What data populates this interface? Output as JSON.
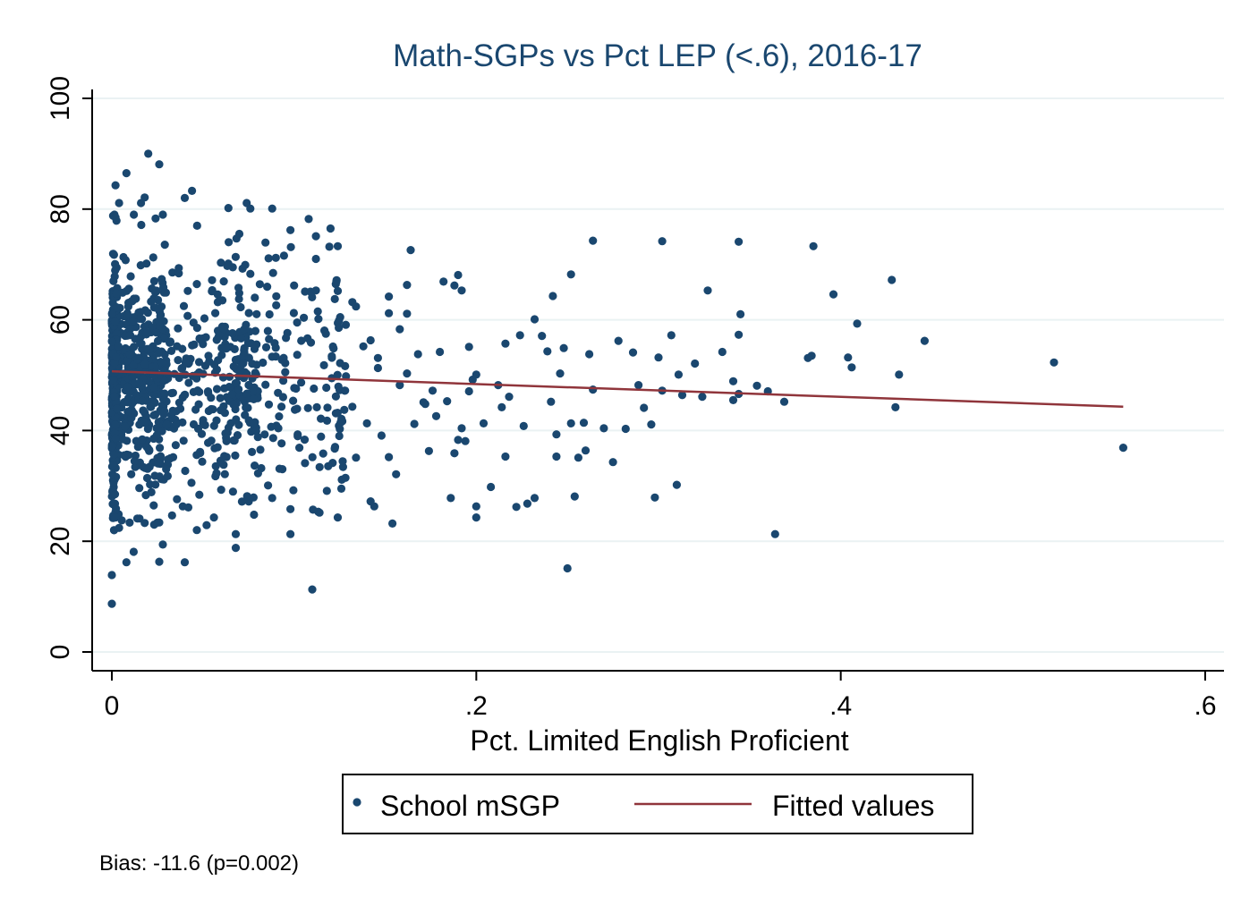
{
  "chart_data": {
    "type": "scatter",
    "title": "Math-SGPs vs Pct LEP (<.6), 2016-17",
    "xlabel": "Pct. Limited English Proficient",
    "ylabel": "",
    "xlim": [
      0,
      0.6
    ],
    "ylim": [
      0,
      100
    ],
    "x_ticks": [
      0,
      0.2,
      0.4,
      0.6
    ],
    "x_tick_labels": [
      "0",
      ".2",
      ".4",
      ".6"
    ],
    "y_ticks": [
      0,
      20,
      40,
      60,
      80,
      100
    ],
    "y_tick_labels": [
      "0",
      "20",
      "40",
      "60",
      "80",
      "100"
    ],
    "grid": "horizontal",
    "legend_position": "bottom",
    "colors": {
      "points": "#1a476f",
      "fit": "#90353b",
      "title": "#1a476f"
    },
    "series": [
      {
        "name": "School mSGP",
        "kind": "scatter",
        "points": [
          [
            0,
            8.7
          ],
          [
            0,
            13.9
          ],
          [
            0.002,
            84.3
          ],
          [
            0.002,
            78.5
          ],
          [
            0.004,
            81.1
          ],
          [
            0.008,
            86.5
          ],
          [
            0.02,
            90
          ],
          [
            0.026,
            88.1
          ],
          [
            0.016,
            81.1
          ],
          [
            0.018,
            82.1
          ],
          [
            0.04,
            82
          ],
          [
            0.044,
            83.3
          ],
          [
            0.024,
            78.3
          ],
          [
            0.064,
            80.2
          ],
          [
            0.074,
            81.1
          ],
          [
            0.076,
            80.1
          ],
          [
            0.088,
            80.1
          ],
          [
            0.076,
            68.3
          ],
          [
            0.086,
            71.1
          ],
          [
            0.09,
            71.2
          ],
          [
            0.108,
            78.2
          ],
          [
            0.098,
            76.2
          ],
          [
            0.112,
            75.1
          ],
          [
            0.112,
            71
          ],
          [
            0.12,
            76.5
          ],
          [
            0.124,
            73.3
          ],
          [
            0.164,
            72.6
          ],
          [
            0.182,
            66.9
          ],
          [
            0.188,
            66.2
          ],
          [
            0.19,
            68.1
          ],
          [
            0.192,
            65.3
          ],
          [
            0.162,
            66.3
          ],
          [
            0.152,
            64.2
          ],
          [
            0.124,
            65.2
          ],
          [
            0.112,
            65.3
          ],
          [
            0.106,
            65.1
          ],
          [
            0.1,
            66.2
          ],
          [
            0.134,
            62.4
          ],
          [
            0.242,
            64.3
          ],
          [
            0.252,
            68.2
          ],
          [
            0.264,
            74.3
          ],
          [
            0.302,
            74.2
          ],
          [
            0.344,
            74.1
          ],
          [
            0.385,
            73.3
          ],
          [
            0.396,
            64.6
          ],
          [
            0.428,
            67.2
          ],
          [
            0.327,
            65.3
          ],
          [
            0.345,
            61
          ],
          [
            0.344,
            57.3
          ],
          [
            0.409,
            59.3
          ],
          [
            0.446,
            56.2
          ],
          [
            0.382,
            53.1
          ],
          [
            0.384,
            53.5
          ],
          [
            0.404,
            53.2
          ],
          [
            0.406,
            51.4
          ],
          [
            0.432,
            50.1
          ],
          [
            0.43,
            44.2
          ],
          [
            0.517,
            52.3
          ],
          [
            0.555,
            36.9
          ],
          [
            0.364,
            21.3
          ],
          [
            0.302,
            47.2
          ],
          [
            0.31,
            30.2
          ],
          [
            0.298,
            27.9
          ],
          [
            0.3,
            53.2
          ],
          [
            0.307,
            57.2
          ],
          [
            0.311,
            50.1
          ],
          [
            0.313,
            46.4
          ],
          [
            0.32,
            52.1
          ],
          [
            0.324,
            46.1
          ],
          [
            0.335,
            54.2
          ],
          [
            0.341,
            48.9
          ],
          [
            0.341,
            45.5
          ],
          [
            0.344,
            46.6
          ],
          [
            0.354,
            48.1
          ],
          [
            0.36,
            47.1
          ],
          [
            0.369,
            45.2
          ],
          [
            0.25,
            15.1
          ],
          [
            0.254,
            28.1
          ],
          [
            0.256,
            35.1
          ],
          [
            0.259,
            41.4
          ],
          [
            0.26,
            36.4
          ],
          [
            0.264,
            47.4
          ],
          [
            0.262,
            53.8
          ],
          [
            0.27,
            40.4
          ],
          [
            0.275,
            34.3
          ],
          [
            0.278,
            56.2
          ],
          [
            0.282,
            40.3
          ],
          [
            0.286,
            54.1
          ],
          [
            0.289,
            48.2
          ],
          [
            0.292,
            44.1
          ],
          [
            0.296,
            41.1
          ],
          [
            0.232,
            60.1
          ],
          [
            0.236,
            57.1
          ],
          [
            0.239,
            54.3
          ],
          [
            0.241,
            45.2
          ],
          [
            0.244,
            39.3
          ],
          [
            0.246,
            50.3
          ],
          [
            0.248,
            54.9
          ],
          [
            0.244,
            35.3
          ],
          [
            0.252,
            41.3
          ],
          [
            0.222,
            26.2
          ],
          [
            0.226,
            40.8
          ],
          [
            0.228,
            26.8
          ],
          [
            0.232,
            27.8
          ],
          [
            0.214,
            44.2
          ],
          [
            0.216,
            35.3
          ],
          [
            0.218,
            46.1
          ],
          [
            0.212,
            48.2
          ],
          [
            0.208,
            29.8
          ],
          [
            0.204,
            41.3
          ],
          [
            0.2,
            26.3
          ],
          [
            0.2,
            24.3
          ],
          [
            0.198,
            49.2
          ],
          [
            0.196,
            55.1
          ],
          [
            0.194,
            38.1
          ],
          [
            0.19,
            38.3
          ],
          [
            0.188,
            35.9
          ],
          [
            0.186,
            27.8
          ],
          [
            0.184,
            45.3
          ],
          [
            0.18,
            54.2
          ],
          [
            0.176,
            47.2
          ],
          [
            0.174,
            36.3
          ],
          [
            0.171,
            45.1
          ],
          [
            0.168,
            53.8
          ],
          [
            0.166,
            41.2
          ],
          [
            0.162,
            50.3
          ],
          [
            0.158,
            48.2
          ],
          [
            0.156,
            32.1
          ],
          [
            0.154,
            23.2
          ],
          [
            0.152,
            35.2
          ],
          [
            0.148,
            39.1
          ],
          [
            0.146,
            51.3
          ],
          [
            0.144,
            26.3
          ],
          [
            0.142,
            27.2
          ],
          [
            0.14,
            41.3
          ],
          [
            0.138,
            55.2
          ],
          [
            0.134,
            35.1
          ],
          [
            0.132,
            44.3
          ],
          [
            0.128,
            47.2
          ],
          [
            0.126,
            42.1
          ],
          [
            0.124,
            24.3
          ],
          [
            0.118,
            29.1
          ],
          [
            0.114,
            33.4
          ],
          [
            0.11,
            11.3
          ],
          [
            0.106,
            34.1
          ],
          [
            0.102,
            39.3
          ],
          [
            0.098,
            21.3
          ],
          [
            0.098,
            25.8
          ],
          [
            0.092,
            33.1
          ],
          [
            0.088,
            27.8
          ],
          [
            0.082,
            33.2
          ],
          [
            0.078,
            24.8
          ],
          [
            0.068,
            18.8
          ],
          [
            0.068,
            21.3
          ],
          [
            0.056,
            24.3
          ],
          [
            0.04,
            16.2
          ],
          [
            0.026,
            16.3
          ],
          [
            0.028,
            19.4
          ],
          [
            0.018,
            23.3
          ],
          [
            0.012,
            18.1
          ],
          [
            0.008,
            16.2
          ],
          [
            0.004,
            22.4
          ],
          [
            0.002,
            24.3
          ],
          [
            0.014,
            24.1
          ],
          [
            0.026,
            23.4
          ],
          [
            0.042,
            26.1
          ],
          [
            0.048,
            28.4
          ],
          [
            0.052,
            22.9
          ],
          [
            0.06,
            29.3
          ],
          [
            0.132,
            63.2
          ],
          [
            0.152,
            61.2
          ],
          [
            0.158,
            58.3
          ],
          [
            0.162,
            61.1
          ],
          [
            0.142,
            56.3
          ],
          [
            0.146,
            53.1
          ],
          [
            0.224,
            57.2
          ],
          [
            0.216,
            55.7
          ],
          [
            0.2,
            50.1
          ],
          [
            0.196,
            47.1
          ],
          [
            0.192,
            40.4
          ],
          [
            0.178,
            42.6
          ],
          [
            0.172,
            44.8
          ]
        ]
      },
      {
        "name": "Fitted values",
        "kind": "line",
        "points": [
          [
            0,
            50.7
          ],
          [
            0.555,
            44.3
          ]
        ]
      }
    ],
    "dense_cloud": {
      "x_range": [
        0,
        0.13
      ],
      "y_mean": 49,
      "y_sd": 10,
      "y_min": 22,
      "y_max": 79,
      "count": 1100
    },
    "legend": [
      "School mSGP",
      "Fitted values"
    ],
    "note": "Bias: -11.6 (p=0.002)"
  }
}
